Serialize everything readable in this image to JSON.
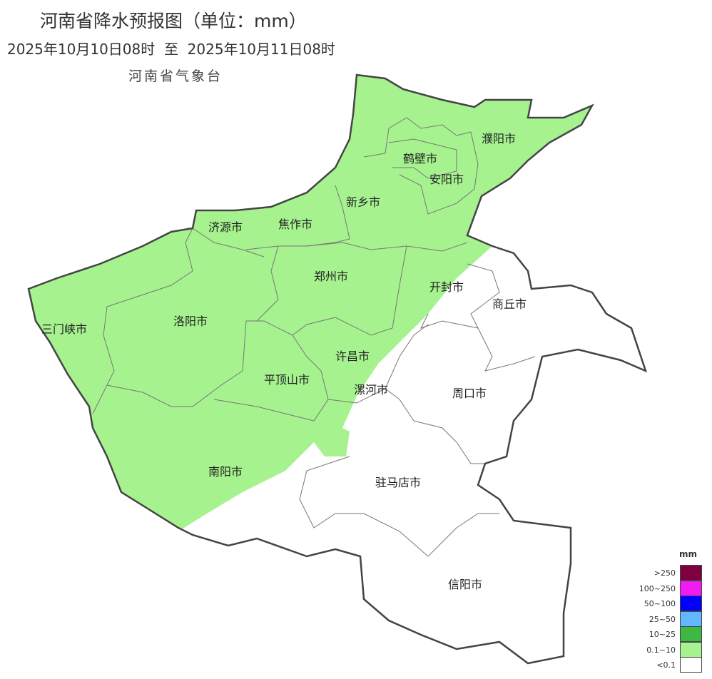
{
  "header": {
    "title": "河南省降水预报图（单位：mm）",
    "period": "2025年10月10日08时  至  2025年10月11日08时",
    "issuer": "河南省气象台"
  },
  "map": {
    "cities": [
      "濮阳市",
      "鹤壁市",
      "安阳市",
      "新乡市",
      "济源市",
      "焦作市",
      "郑州市",
      "开封市",
      "商丘市",
      "三门峡市",
      "洛阳市",
      "许昌市",
      "平顶山市",
      "漯河市",
      "周口市",
      "南阳市",
      "驻马店市",
      "信阳市"
    ],
    "colors": {
      "rain_0_1_10": "#a6f28f",
      "none": "#ffffff",
      "border": "#444444"
    }
  },
  "legend": {
    "unit": "mm",
    "items": [
      {
        "label": ">250",
        "color": "#7f0040"
      },
      {
        "label": "100~250",
        "color": "#f21cf2"
      },
      {
        "label": "50~100",
        "color": "#0000fe"
      },
      {
        "label": "25~50",
        "color": "#62b8ff"
      },
      {
        "label": "10~25",
        "color": "#3db842"
      },
      {
        "label": "0.1~10",
        "color": "#a6f28f"
      },
      {
        "label": "<0.1",
        "color": "#ffffff"
      }
    ]
  }
}
